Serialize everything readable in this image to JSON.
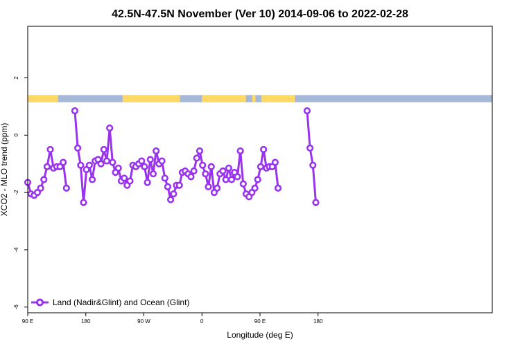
{
  "chart_data": {
    "type": "line",
    "title": "42.5N-47.5N November (Ver 10)   2014-09-06 to 2022-02-28",
    "xlabel": "Longitude (deg E)",
    "ylabel": "XCO2 - MLO trend (ppm)",
    "xlim": [
      90,
      450
    ],
    "ylim": [
      -6.2,
      3.8
    ],
    "xticks": [
      {
        "value": 90,
        "label": "90 E"
      },
      {
        "value": 180,
        "label": "180"
      },
      {
        "value": 270,
        "label": "90 W"
      },
      {
        "value": 360,
        "label": "0"
      },
      {
        "value": 450,
        "label": "90 E"
      },
      {
        "value": 540,
        "label": "180"
      }
    ],
    "yticks": [
      {
        "value": 2,
        "label": "2"
      },
      {
        "value": 0,
        "label": "0"
      },
      {
        "value": -2,
        "label": "-2"
      },
      {
        "value": -4,
        "label": "-4"
      },
      {
        "value": -6,
        "label": "-6"
      }
    ],
    "grid": false,
    "legend_position": "bottom-left",
    "land_ocean_strip": {
      "y_range": [
        1.15,
        1.4
      ],
      "land_color": "#FFD966",
      "ocean_color": "#A5B8D8",
      "land_segments_lon": [
        [
          90,
          137
        ],
        [
          237,
          326
        ],
        [
          360,
          428
        ],
        [
          438,
          443
        ],
        [
          452,
          504
        ]
      ]
    },
    "series": [
      {
        "name": "Land (Nadir&Glint) and Ocean (Glint)",
        "color": "#9933EE",
        "segments": [
          {
            "x": [
              90,
              95,
              100,
              105,
              110,
              115,
              120,
              125,
              130,
              135,
              140,
              145,
              150,
              155,
              160,
              165
            ],
            "y": [
              -1.65,
              -2.05,
              -2.1,
              -2.0,
              -1.85,
              -1.55,
              -1.1,
              -0.5,
              -1.15,
              -1.1,
              -1.1,
              -0.95,
              -1.85,
              null,
              null,
              null
            ]
          },
          {
            "x": [
              163,
              167.5,
              172,
              176.5,
              181,
              185.5,
              190,
              194.5,
              199,
              203.5,
              208,
              212.5,
              217,
              221.5,
              226,
              230.5,
              235,
              239.5,
              244,
              248.5,
              253,
              257.5,
              262,
              266.5,
              271,
              275.5,
              280,
              284.5,
              289,
              293.5,
              298,
              302.5,
              307,
              311.5,
              316,
              320.5,
              325,
              329.5,
              334,
              338.5,
              343,
              347.5,
              352,
              356.5,
              361,
              365.5,
              370,
              374.5,
              379,
              383.5,
              388,
              392.5,
              397,
              401.5,
              406,
              410.5,
              415,
              419.5,
              424,
              428.5,
              433,
              437.5,
              442,
              446.5,
              451,
              455.5,
              460,
              464.5,
              469,
              473.5,
              478,
              482.5,
              487,
              491.5,
              496,
              500.5,
              505,
              509.5
            ],
            "y": [
              0.85,
              -0.45,
              -1.05,
              -2.35,
              -1.2,
              -1.05,
              -1.55,
              -0.9,
              -0.85,
              -1.0,
              -0.5,
              -0.9,
              0.25,
              -0.95,
              -1.3,
              -1.15,
              -1.6,
              -1.5,
              -1.75,
              -1.6,
              -1.05,
              -1.1,
              -1.0,
              -0.9,
              -1.1,
              -1.65,
              -0.85,
              -1.35,
              -0.55,
              -1.0,
              -0.9,
              -1.5,
              -1.8,
              -2.25,
              -2.05,
              -1.75,
              -1.75,
              -1.3,
              -1.25,
              -1.35,
              -1.45,
              -1.25,
              -0.8,
              -0.55,
              -1.05,
              -1.35,
              -1.8,
              -1.1,
              -2.0,
              -1.85,
              -1.35,
              -1.25,
              -1.55,
              -1.15,
              -1.55,
              -1.3,
              -1.45,
              -0.55,
              -1.7,
              -2.05,
              -2.15,
              -2.0,
              -1.85,
              -1.55,
              -1.1,
              -0.5,
              -1.15,
              -1.1,
              -1.1,
              -0.95,
              -1.85,
              null,
              null,
              null,
              null,
              null,
              null,
              null
            ]
          },
          {
            "x": [
              523,
              527.5,
              532,
              536.5
            ],
            "y": [
              0.85,
              -0.45,
              -1.05,
              -2.35
            ]
          }
        ]
      }
    ]
  }
}
